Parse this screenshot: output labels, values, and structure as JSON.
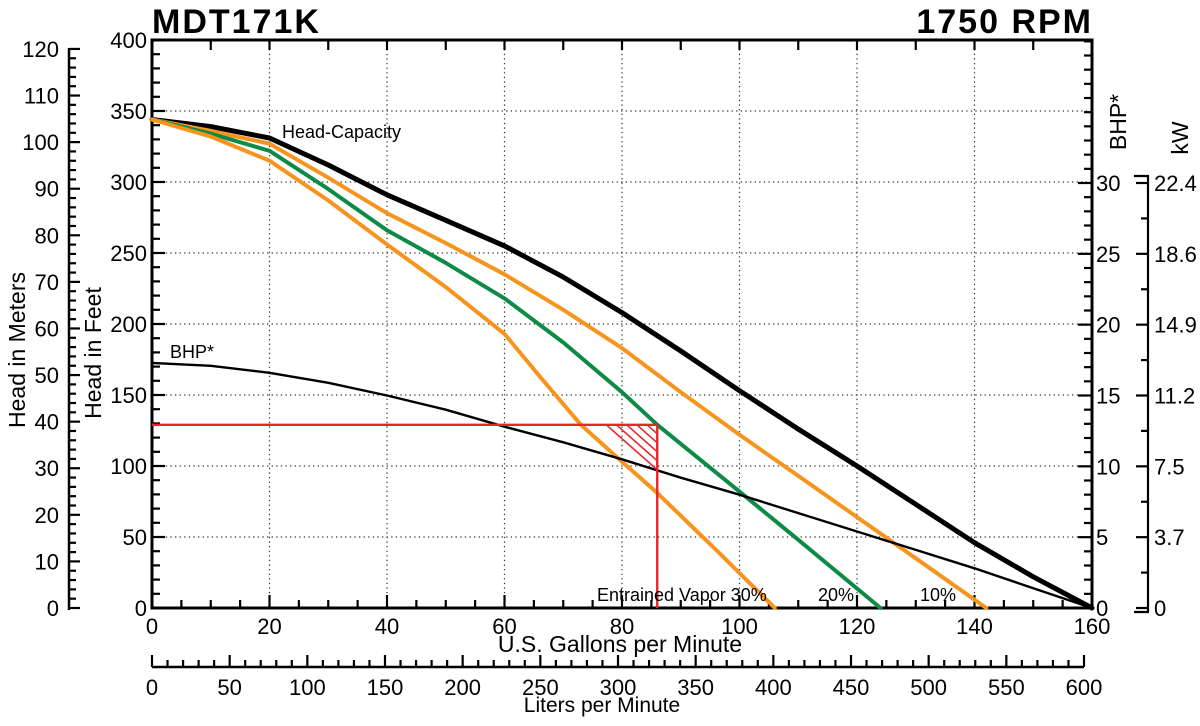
{
  "header": {
    "model": "MDT171K",
    "rpm": "1750 RPM"
  },
  "axis_titles": {
    "left_outer": "Head in Meters",
    "left_inner": "Head in Feet",
    "bottom_primary": "U.S. Gallons per Minute",
    "bottom_secondary": "Liters per Minute",
    "right_inner": "BHP*",
    "right_outer": "kW"
  },
  "curve_labels": {
    "head_capacity": "Head-Capacity",
    "bhp": "BHP*",
    "vapor30": "Entrained Vapor 30%",
    "vapor20": "20%",
    "vapor10": "10%"
  },
  "colors": {
    "ink": "#000000",
    "accent_orange": "#F7941E",
    "accent_green": "#0E8A47",
    "annotation_red": "#E9252C",
    "grid": "#333333"
  },
  "chart_data": {
    "type": "line",
    "title": "MDT171K pump performance curve at 1750 RPM",
    "x_axes": {
      "gpm": {
        "label": "U.S. Gallons per Minute",
        "min": 0,
        "max": 160,
        "major_ticks": [
          0,
          20,
          40,
          60,
          80,
          100,
          120,
          140,
          160
        ],
        "minor_step": 5
      },
      "liters": {
        "label": "Liters per Minute",
        "min": 0,
        "max": 600,
        "major_ticks": [
          0,
          50,
          100,
          150,
          200,
          250,
          300,
          350,
          400,
          450,
          500,
          550,
          600
        ],
        "minor_step": 10
      }
    },
    "y_axes": {
      "feet": {
        "label": "Head in Feet",
        "min": 0,
        "max": 400,
        "major_ticks": [
          400,
          350,
          300,
          250,
          200,
          150,
          100,
          50,
          0
        ],
        "minor_step": 10
      },
      "meters": {
        "label": "Head in Meters",
        "min": 0,
        "max": 120,
        "major_ticks": [
          120,
          110,
          100,
          90,
          80,
          70,
          60,
          50,
          40,
          30,
          20,
          10,
          0
        ],
        "minor_step": 2
      },
      "bhp": {
        "label": "BHP*",
        "min": 0,
        "max": 30,
        "major_ticks": [
          30,
          25,
          20,
          15,
          10,
          5,
          0
        ],
        "minor_step": 1
      },
      "kw": {
        "label": "kW",
        "tick_labels": [
          "22.4",
          "18.6",
          "14.9",
          "11.2",
          "7.5",
          "3.7",
          "0"
        ]
      }
    },
    "grid": {
      "h_feet": [
        50,
        100,
        150,
        200,
        250,
        300,
        350
      ],
      "v_gpm": [
        20,
        40,
        60,
        80,
        100,
        120,
        140
      ]
    },
    "series": [
      {
        "name": "Head-Capacity",
        "x_unit": "gpm",
        "y_unit": "feet",
        "color": "#000000",
        "width": 5,
        "points": [
          [
            0,
            344
          ],
          [
            10,
            339
          ],
          [
            20,
            331
          ],
          [
            30,
            312
          ],
          [
            40,
            291
          ],
          [
            50,
            273
          ],
          [
            60,
            255
          ],
          [
            70,
            233
          ],
          [
            80,
            208
          ],
          [
            90,
            181
          ],
          [
            100,
            153
          ],
          [
            110,
            126
          ],
          [
            120,
            100
          ],
          [
            130,
            73
          ],
          [
            140,
            46
          ],
          [
            150,
            22
          ],
          [
            160,
            0
          ]
        ]
      },
      {
        "name": "Entrained Vapor 10%",
        "x_unit": "gpm",
        "y_unit": "feet",
        "color": "#F7941E",
        "width": 4,
        "points": [
          [
            0,
            344
          ],
          [
            10,
            336
          ],
          [
            20,
            327
          ],
          [
            30,
            303
          ],
          [
            40,
            278
          ],
          [
            50,
            257
          ],
          [
            60,
            235
          ],
          [
            70,
            210
          ],
          [
            80,
            183
          ],
          [
            90,
            152
          ],
          [
            100,
            122
          ],
          [
            110,
            93
          ],
          [
            120,
            64
          ],
          [
            130,
            35
          ],
          [
            142,
            0
          ]
        ]
      },
      {
        "name": "Entrained Vapor 20%",
        "x_unit": "gpm",
        "y_unit": "feet",
        "color": "#0E8A47",
        "width": 4,
        "points": [
          [
            0,
            344
          ],
          [
            10,
            334
          ],
          [
            20,
            322
          ],
          [
            30,
            295
          ],
          [
            40,
            266
          ],
          [
            50,
            243
          ],
          [
            60,
            218
          ],
          [
            70,
            187
          ],
          [
            80,
            152
          ],
          [
            86,
            129
          ],
          [
            100,
            82
          ],
          [
            110,
            48
          ],
          [
            124,
            0
          ]
        ]
      },
      {
        "name": "Entrained Vapor 30%",
        "x_unit": "gpm",
        "y_unit": "feet",
        "color": "#F7941E",
        "width": 4,
        "points": [
          [
            0,
            344
          ],
          [
            10,
            332
          ],
          [
            20,
            315
          ],
          [
            30,
            287
          ],
          [
            40,
            256
          ],
          [
            50,
            226
          ],
          [
            60,
            193
          ],
          [
            66,
            163
          ],
          [
            73,
            129
          ],
          [
            80,
            103
          ],
          [
            86,
            81
          ],
          [
            96,
            41
          ],
          [
            106,
            0
          ]
        ]
      },
      {
        "name": "BHP*",
        "x_unit": "gpm",
        "y_unit": "bhp",
        "color": "#000000",
        "width": 2.4,
        "points": [
          [
            0,
            17.3
          ],
          [
            10,
            17.1
          ],
          [
            20,
            16.6
          ],
          [
            30,
            15.9
          ],
          [
            40,
            15.0
          ],
          [
            50,
            14.0
          ],
          [
            60,
            12.8
          ],
          [
            70,
            11.7
          ],
          [
            80,
            10.5
          ],
          [
            90,
            9.2
          ],
          [
            100,
            8.0
          ],
          [
            110,
            6.7
          ],
          [
            120,
            5.4
          ],
          [
            130,
            4.1
          ],
          [
            140,
            2.8
          ],
          [
            150,
            1.4
          ],
          [
            160,
            0
          ]
        ]
      }
    ],
    "annotation": {
      "duty_gpm": 86,
      "duty_feet": 129,
      "color": "#E9252C",
      "style": "horizontal and vertical red reference lines with hatched triangle at duty point"
    }
  }
}
